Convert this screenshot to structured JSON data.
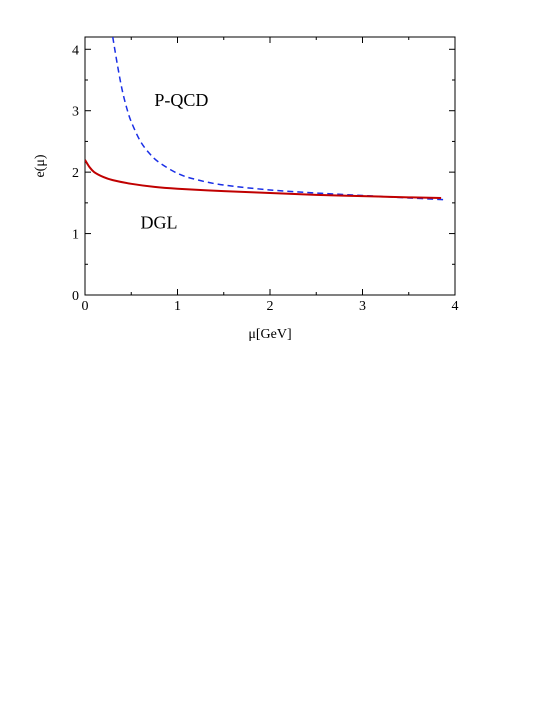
{
  "chart_data": {
    "type": "line",
    "xlabel": "μ[GeV]",
    "ylabel": "e(μ)",
    "xlim": [
      0,
      4
    ],
    "ylim": [
      0,
      4.2
    ],
    "x_ticks": [
      "0",
      "1",
      "2",
      "3",
      "4"
    ],
    "y_ticks": [
      "0",
      "1",
      "2",
      "3",
      "4"
    ],
    "grid": false,
    "annotations": [
      {
        "text": "P-QCD",
        "x": 0.75,
        "y": 3.08
      },
      {
        "text": "DGL",
        "x": 0.6,
        "y": 1.08
      }
    ],
    "series": [
      {
        "name": "P-QCD",
        "style": "dashed",
        "color": "#1a2fe6",
        "x": [
          0.3,
          0.35,
          0.4,
          0.45,
          0.5,
          0.6,
          0.7,
          0.8,
          1.0,
          1.2,
          1.5,
          2.0,
          2.5,
          3.0,
          3.5,
          3.9
        ],
        "y": [
          4.2,
          3.75,
          3.35,
          3.05,
          2.82,
          2.5,
          2.3,
          2.16,
          1.98,
          1.88,
          1.79,
          1.71,
          1.66,
          1.62,
          1.58,
          1.55
        ]
      },
      {
        "name": "DGL",
        "style": "solid",
        "color": "#c00000",
        "x": [
          0.0,
          0.05,
          0.1,
          0.2,
          0.3,
          0.5,
          0.75,
          1.0,
          1.5,
          2.0,
          2.5,
          3.0,
          3.5,
          3.85
        ],
        "y": [
          2.2,
          2.08,
          2.0,
          1.92,
          1.87,
          1.81,
          1.76,
          1.73,
          1.69,
          1.66,
          1.63,
          1.61,
          1.59,
          1.58
        ]
      }
    ]
  }
}
